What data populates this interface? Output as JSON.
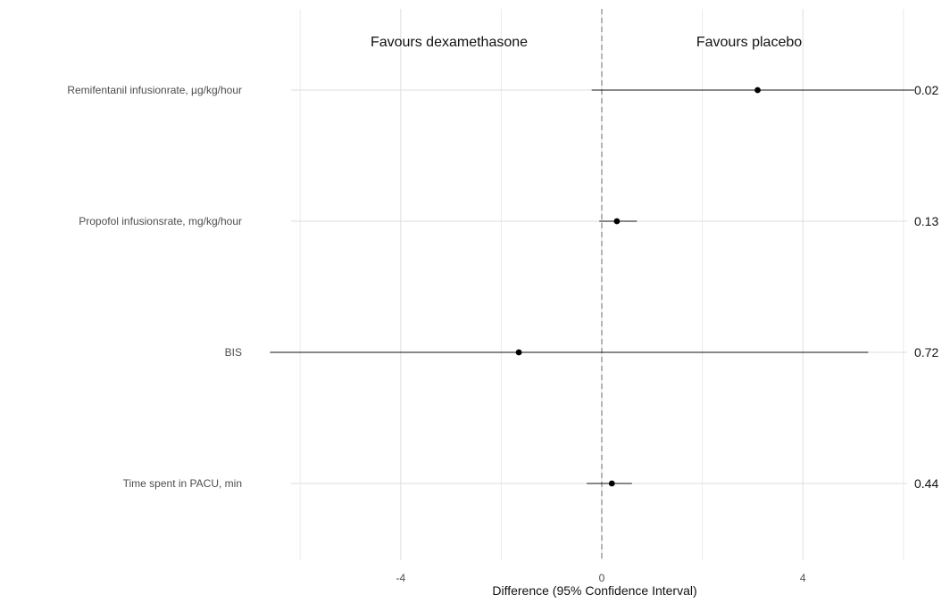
{
  "chart_data": {
    "type": "forest",
    "xlabel": "Difference (95% Confidence Interval)",
    "xlim": [
      -6.2,
      6.2
    ],
    "x_ticks": [
      -4,
      0,
      4
    ],
    "x_minor_gridlines": [
      -6,
      -2,
      2,
      6
    ],
    "reference_line": 0,
    "reference_line_style": "dashed",
    "grid": true,
    "annotations": {
      "left": "Favours dexamethasone",
      "right": "Favours placebo"
    },
    "rows": [
      {
        "label": "Remifentanil infusionrate, µg/kg/hour",
        "estimate": 3.1,
        "lower": -0.2,
        "upper": 6.4,
        "p_value": "0.02"
      },
      {
        "label": "Propofol infusionsrate, mg/kg/hour",
        "estimate": 0.3,
        "lower": -0.05,
        "upper": 0.7,
        "p_value": "0.13"
      },
      {
        "label": "BIS",
        "estimate": -1.65,
        "lower": -6.6,
        "upper": 5.3,
        "p_value": "0.72"
      },
      {
        "label": "Time spent in PACU, min",
        "estimate": 0.2,
        "lower": -0.3,
        "upper": 0.6,
        "p_value": "0.44"
      }
    ]
  }
}
